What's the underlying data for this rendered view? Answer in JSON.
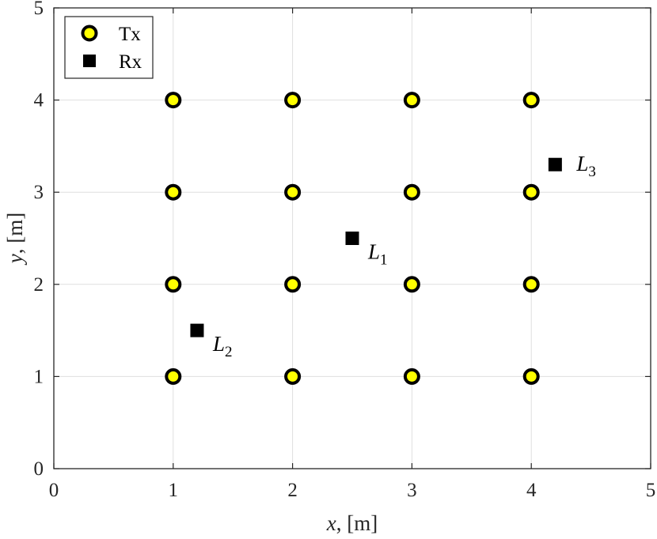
{
  "chart_data": {
    "type": "scatter",
    "xlabel_var": "x",
    "xlabel_unit": ", [m]",
    "ylabel_var": "y",
    "ylabel_unit": ", [m]",
    "xlim": [
      0,
      5
    ],
    "ylim": [
      0,
      5
    ],
    "xticks": [
      0,
      1,
      2,
      3,
      4,
      5
    ],
    "yticks": [
      0,
      1,
      2,
      3,
      4,
      5
    ],
    "grid": true,
    "legend_position": "top-left",
    "series": [
      {
        "name": "Tx",
        "marker": "circle",
        "face_color": "#ffff00",
        "edge_color": "#000000",
        "points": [
          {
            "x": 1,
            "y": 1
          },
          {
            "x": 2,
            "y": 1
          },
          {
            "x": 3,
            "y": 1
          },
          {
            "x": 4,
            "y": 1
          },
          {
            "x": 1,
            "y": 2
          },
          {
            "x": 2,
            "y": 2
          },
          {
            "x": 3,
            "y": 2
          },
          {
            "x": 4,
            "y": 2
          },
          {
            "x": 1,
            "y": 3
          },
          {
            "x": 2,
            "y": 3
          },
          {
            "x": 3,
            "y": 3
          },
          {
            "x": 4,
            "y": 3
          },
          {
            "x": 1,
            "y": 4
          },
          {
            "x": 2,
            "y": 4
          },
          {
            "x": 3,
            "y": 4
          },
          {
            "x": 4,
            "y": 4
          }
        ]
      },
      {
        "name": "Rx",
        "marker": "square",
        "face_color": "#000000",
        "edge_color": "#000000",
        "points": [
          {
            "x": 2.5,
            "y": 2.5,
            "label": "L",
            "label_sub": "1"
          },
          {
            "x": 1.2,
            "y": 1.5,
            "label": "L",
            "label_sub": "2"
          },
          {
            "x": 4.2,
            "y": 3.3,
            "label": "L",
            "label_sub": "3"
          }
        ]
      }
    ]
  }
}
